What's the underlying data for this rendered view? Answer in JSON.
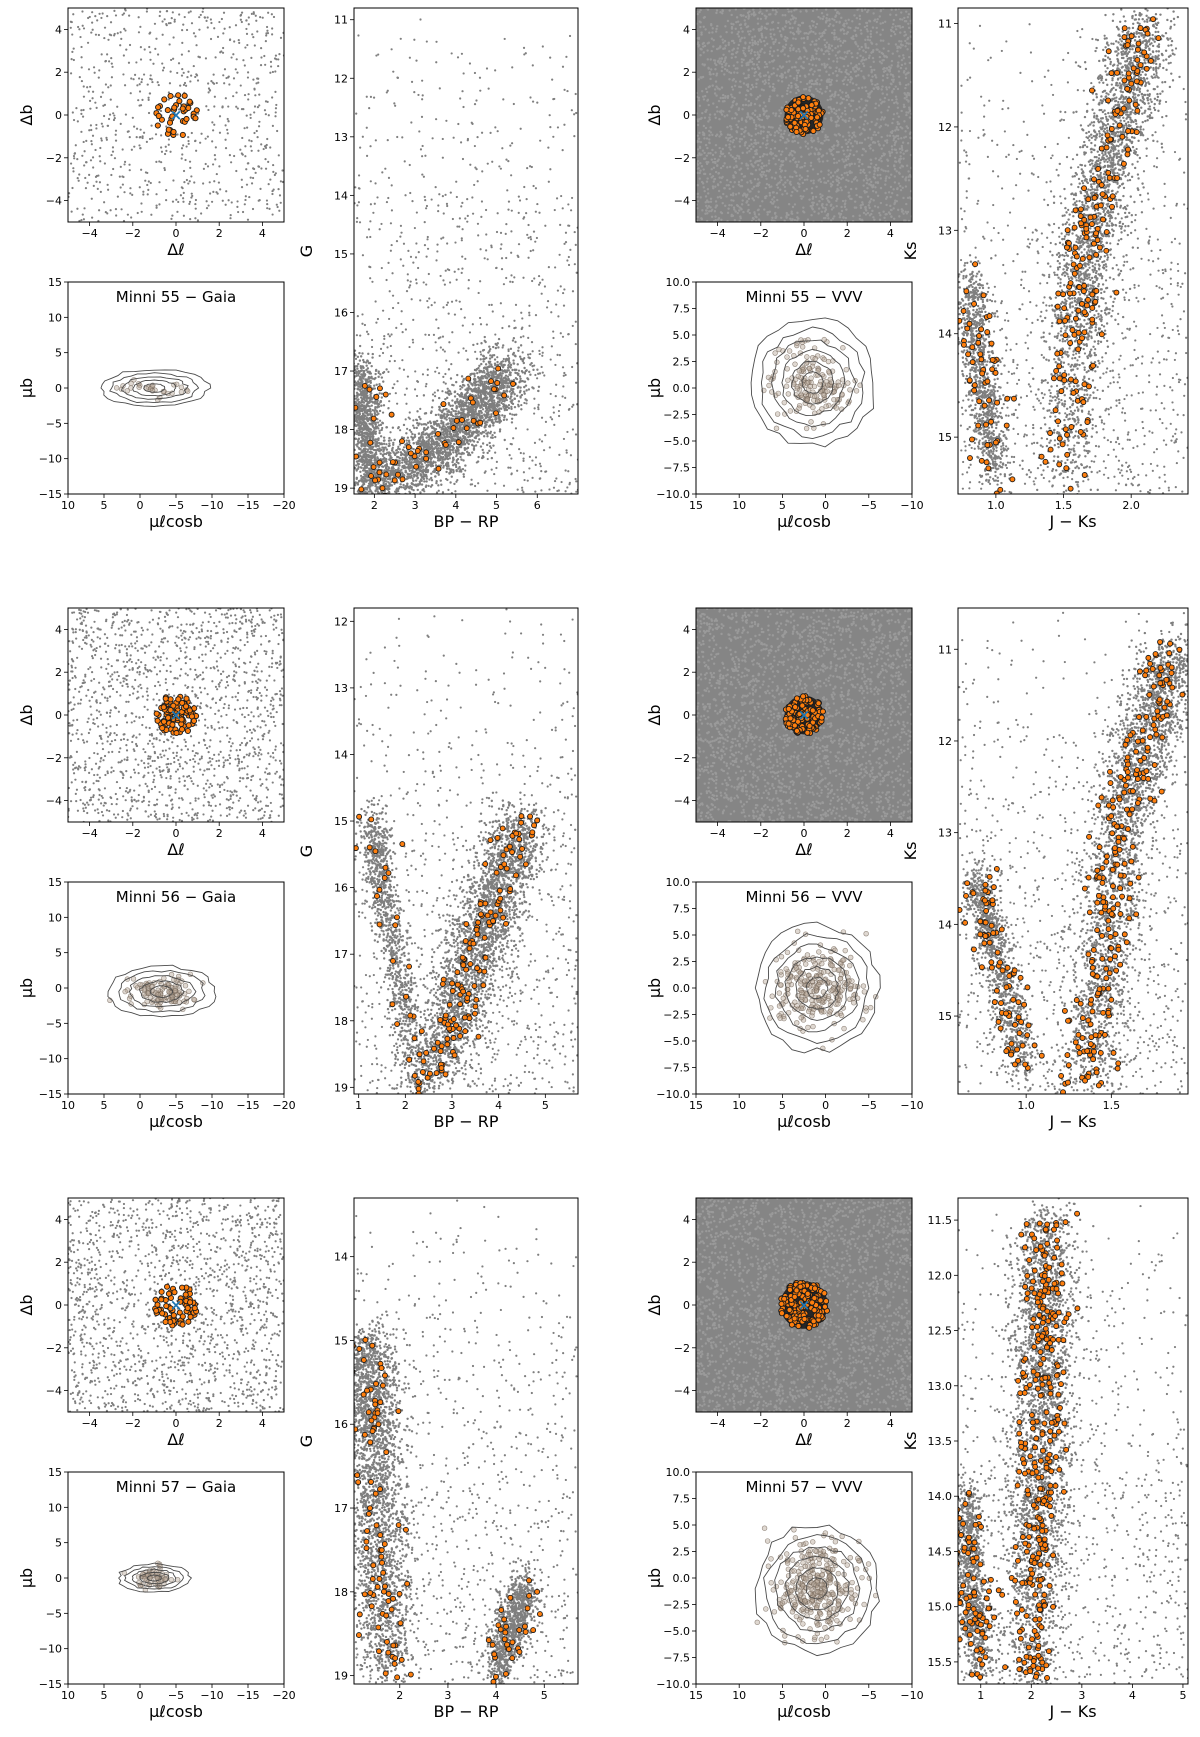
{
  "chart_data": [
    {
      "type": "scatter",
      "id": "m55-gaia-sky",
      "source": "Gaia",
      "cluster": "Minni 55",
      "kind": "sky",
      "xlabel": "Δℓ",
      "ylabel": "Δb",
      "xlim": [
        -5,
        5
      ],
      "ylim": [
        -5,
        5
      ],
      "invert_x": false,
      "invert_y": false,
      "xticks": [
        -4,
        -2,
        0,
        2,
        4
      ],
      "yticks": [
        -4,
        -2,
        0,
        2,
        4
      ],
      "field_density": "sparse",
      "member_radius": 1.0,
      "members_count": 40,
      "center": {
        "x": 0,
        "y": 0
      },
      "title": ""
    },
    {
      "type": "scatter",
      "id": "m55-gaia-pm",
      "source": "Gaia",
      "cluster": "Minni 55",
      "kind": "pm",
      "title": "Minni 55 − Gaia",
      "xlabel": "μℓcosb",
      "ylabel": "μb",
      "xlim": [
        10,
        -20
      ],
      "ylim": [
        -15,
        15
      ],
      "invert_x": true,
      "invert_y": false,
      "xticks": [
        10,
        5,
        0,
        -5,
        -10,
        -15,
        -20
      ],
      "yticks": [
        -15,
        -10,
        -5,
        0,
        5,
        10,
        15
      ],
      "center": {
        "x": -2,
        "y": 0
      },
      "spread": [
        3.8,
        1.4
      ],
      "members_count": 30,
      "contour_rx": [
        1.5,
        3,
        4.5,
        6,
        7.5
      ],
      "contour_ry": [
        0.6,
        1.1,
        1.6,
        2.1,
        2.6
      ]
    },
    {
      "type": "scatter",
      "id": "m55-gaia-cmd",
      "source": "Gaia",
      "cluster": "Minni 55",
      "kind": "cmd",
      "xlabel": "BP − RP",
      "ylabel": "G",
      "xlim": [
        1.5,
        7.0
      ],
      "ylim": [
        10.8,
        19.1
      ],
      "invert_x": false,
      "invert_y": true,
      "xticks": [
        2,
        3,
        4,
        5,
        6
      ],
      "yticks": [
        11,
        12,
        13,
        14,
        15,
        16,
        17,
        18,
        19
      ],
      "field_ridge": [
        [
          2.0,
          19.0
        ],
        [
          2.8,
          18.6
        ],
        [
          3.8,
          18.2
        ],
        [
          4.6,
          17.6
        ],
        [
          5.2,
          17.0
        ]
      ],
      "field_branch": [
        [
          1.9,
          19.0
        ],
        [
          1.8,
          18.0
        ],
        [
          1.7,
          17.0
        ]
      ],
      "members_count": 60,
      "title": ""
    },
    {
      "type": "scatter",
      "id": "m55-vvv-sky",
      "source": "VVV",
      "cluster": "Minni 55",
      "kind": "sky",
      "xlabel": "Δℓ",
      "ylabel": "Δb",
      "xlim": [
        -5,
        5
      ],
      "ylim": [
        -5,
        5
      ],
      "invert_x": false,
      "invert_y": false,
      "xticks": [
        -4,
        -2,
        0,
        2,
        4
      ],
      "yticks": [
        -4,
        -2,
        0,
        2,
        4
      ],
      "field_density": "dense",
      "member_radius": 0.9,
      "members_count": 120,
      "center": {
        "x": 0,
        "y": 0
      },
      "title": ""
    },
    {
      "type": "scatter",
      "id": "m55-vvv-pm",
      "source": "VVV",
      "cluster": "Minni 55",
      "kind": "pm",
      "title": "Minni 55 − VVV",
      "xlabel": "μℓcosb",
      "ylabel": "μb",
      "xlim": [
        15,
        -10
      ],
      "ylim": [
        -10,
        10
      ],
      "invert_x": true,
      "invert_y": false,
      "xticks": [
        15,
        10,
        5,
        0,
        -5,
        -10
      ],
      "yticks": [
        -10.0,
        -7.5,
        -5.0,
        -2.5,
        0.0,
        2.5,
        5.0,
        7.5,
        10.0
      ],
      "center": {
        "x": 1.5,
        "y": 0.5
      },
      "spread": [
        4.2,
        3.2
      ],
      "members_count": 180,
      "contour_rx": [
        1.2,
        2.4,
        3.6,
        4.8,
        6.0,
        7.2
      ],
      "contour_ry": [
        1.0,
        2.0,
        3.0,
        4.0,
        5.0,
        6.0
      ]
    },
    {
      "type": "scatter",
      "id": "m55-vvv-cmd",
      "source": "VVV",
      "cluster": "Minni 55",
      "kind": "cmd",
      "xlabel": "J − Ks",
      "ylabel": "Ks",
      "xlim": [
        0.72,
        2.42
      ],
      "ylim": [
        10.85,
        15.55
      ],
      "invert_x": false,
      "invert_y": true,
      "xticks": [
        1.0,
        1.5,
        2.0
      ],
      "yticks": [
        11,
        12,
        13,
        14,
        15
      ],
      "field_ridge": [
        [
          1.5,
          15.5
        ],
        [
          1.6,
          14.0
        ],
        [
          1.7,
          13.0
        ],
        [
          1.9,
          12.0
        ],
        [
          2.1,
          11.0
        ]
      ],
      "field_branch": [
        [
          1.0,
          15.4
        ],
        [
          0.9,
          14.5
        ],
        [
          0.8,
          13.5
        ]
      ],
      "members_count": 260,
      "title": ""
    },
    {
      "type": "scatter",
      "id": "m56-gaia-sky",
      "source": "Gaia",
      "cluster": "Minni 56",
      "kind": "sky",
      "xlabel": "Δℓ",
      "ylabel": "Δb",
      "xlim": [
        -5,
        5
      ],
      "ylim": [
        -5,
        5
      ],
      "invert_x": false,
      "invert_y": false,
      "xticks": [
        -4,
        -2,
        0,
        2,
        4
      ],
      "yticks": [
        -4,
        -2,
        0,
        2,
        4
      ],
      "field_density": "medium",
      "member_radius": 0.95,
      "members_count": 90,
      "center": {
        "x": 0,
        "y": 0
      },
      "title": ""
    },
    {
      "type": "scatter",
      "id": "m56-gaia-pm",
      "source": "Gaia",
      "cluster": "Minni 56",
      "kind": "pm",
      "title": "Minni 56 − Gaia",
      "xlabel": "μℓcosb",
      "ylabel": "μb",
      "xlim": [
        10,
        -20
      ],
      "ylim": [
        -15,
        15
      ],
      "invert_x": true,
      "invert_y": false,
      "xticks": [
        10,
        5,
        0,
        -5,
        -10,
        -15,
        -20
      ],
      "yticks": [
        -15,
        -10,
        -5,
        0,
        5,
        10,
        15
      ],
      "center": {
        "x": -3,
        "y": -0.5
      },
      "spread": [
        4.0,
        2.0
      ],
      "members_count": 120,
      "contour_rx": [
        1.5,
        3,
        4.5,
        6,
        7.5
      ],
      "contour_ry": [
        0.8,
        1.5,
        2.2,
        2.9,
        3.6
      ]
    },
    {
      "type": "scatter",
      "id": "m56-gaia-cmd",
      "source": "Gaia",
      "cluster": "Minni 56",
      "kind": "cmd",
      "xlabel": "BP − RP",
      "ylabel": "G",
      "xlim": [
        0.9,
        5.7
      ],
      "ylim": [
        11.8,
        19.1
      ],
      "invert_x": false,
      "invert_y": true,
      "xticks": [
        1,
        2,
        3,
        4,
        5
      ],
      "yticks": [
        12,
        13,
        14,
        15,
        16,
        17,
        18,
        19
      ],
      "field_ridge": [
        [
          2.5,
          19.0
        ],
        [
          3.0,
          18.0
        ],
        [
          3.5,
          17.0
        ],
        [
          4.0,
          16.0
        ],
        [
          4.5,
          15.0
        ]
      ],
      "field_branch": [
        [
          2.2,
          19.0
        ],
        [
          1.9,
          17.5
        ],
        [
          1.5,
          16.0
        ],
        [
          1.3,
          15.0
        ]
      ],
      "members_count": 160,
      "title": ""
    },
    {
      "type": "scatter",
      "id": "m56-vvv-sky",
      "source": "VVV",
      "cluster": "Minni 56",
      "kind": "sky",
      "xlabel": "Δℓ",
      "ylabel": "Δb",
      "xlim": [
        -5,
        5
      ],
      "ylim": [
        -5,
        5
      ],
      "invert_x": false,
      "invert_y": false,
      "xticks": [
        -4,
        -2,
        0,
        2,
        4
      ],
      "yticks": [
        -4,
        -2,
        0,
        2,
        4
      ],
      "field_density": "dense",
      "member_radius": 0.9,
      "members_count": 120,
      "center": {
        "x": 0,
        "y": 0
      },
      "title": ""
    },
    {
      "type": "scatter",
      "id": "m56-vvv-pm",
      "source": "VVV",
      "cluster": "Minni 56",
      "kind": "pm",
      "title": "Minni 56 − VVV",
      "xlabel": "μℓcosb",
      "ylabel": "μb",
      "xlim": [
        15,
        -10
      ],
      "ylim": [
        -10,
        10
      ],
      "invert_x": true,
      "invert_y": false,
      "xticks": [
        15,
        10,
        5,
        0,
        -5,
        -10
      ],
      "yticks": [
        -10.0,
        -7.5,
        -5.0,
        -2.5,
        0.0,
        2.5,
        5.0,
        7.5,
        10.0
      ],
      "center": {
        "x": 1.0,
        "y": 0
      },
      "spread": [
        4.5,
        3.6
      ],
      "members_count": 260,
      "contour_rx": [
        1.2,
        2.4,
        3.6,
        4.8,
        6.0,
        7.2
      ],
      "contour_ry": [
        1.0,
        2.0,
        3.0,
        4.0,
        5.0,
        6.0
      ]
    },
    {
      "type": "scatter",
      "id": "m56-vvv-cmd",
      "source": "VVV",
      "cluster": "Minni 56",
      "kind": "cmd",
      "xlabel": "J − Ks",
      "ylabel": "Ks",
      "xlim": [
        0.6,
        1.95
      ],
      "ylim": [
        10.55,
        15.85
      ],
      "invert_x": false,
      "invert_y": true,
      "xticks": [
        1.0,
        1.5
      ],
      "yticks": [
        11,
        12,
        13,
        14,
        15
      ],
      "field_ridge": [
        [
          1.35,
          15.8
        ],
        [
          1.45,
          14.5
        ],
        [
          1.55,
          13.0
        ],
        [
          1.7,
          12.0
        ],
        [
          1.85,
          11.0
        ]
      ],
      "field_branch": [
        [
          1.0,
          15.6
        ],
        [
          0.85,
          14.5
        ],
        [
          0.7,
          13.5
        ]
      ],
      "members_count": 330,
      "title": ""
    },
    {
      "type": "scatter",
      "id": "m57-gaia-sky",
      "source": "Gaia",
      "cluster": "Minni 57",
      "kind": "sky",
      "xlabel": "Δℓ",
      "ylabel": "Δb",
      "xlim": [
        -5,
        5
      ],
      "ylim": [
        -5,
        5
      ],
      "invert_x": false,
      "invert_y": false,
      "xticks": [
        -4,
        -2,
        0,
        2,
        4
      ],
      "yticks": [
        -4,
        -2,
        0,
        2,
        4
      ],
      "field_density": "medium",
      "member_radius": 1.0,
      "members_count": 70,
      "center": {
        "x": 0,
        "y": 0
      },
      "title": ""
    },
    {
      "type": "scatter",
      "id": "m57-gaia-pm",
      "source": "Gaia",
      "cluster": "Minni 57",
      "kind": "pm",
      "title": "Minni 57 − Gaia",
      "xlabel": "μℓcosb",
      "ylabel": "μb",
      "xlim": [
        10,
        -20
      ],
      "ylim": [
        -15,
        15
      ],
      "invert_x": true,
      "invert_y": false,
      "xticks": [
        10,
        5,
        0,
        -5,
        -10,
        -15,
        -20
      ],
      "yticks": [
        -15,
        -10,
        -5,
        0,
        5,
        10,
        15
      ],
      "center": {
        "x": -2,
        "y": 0
      },
      "spread": [
        2.5,
        1.2
      ],
      "members_count": 60,
      "contour_rx": [
        1,
        2,
        3,
        4,
        5
      ],
      "contour_ry": [
        0.4,
        0.8,
        1.2,
        1.6,
        2.0
      ]
    },
    {
      "type": "scatter",
      "id": "m57-gaia-cmd",
      "source": "Gaia",
      "cluster": "Minni 57",
      "kind": "cmd",
      "xlabel": "BP − RP",
      "ylabel": "G",
      "xlim": [
        1.05,
        5.7
      ],
      "ylim": [
        13.3,
        19.1
      ],
      "invert_x": false,
      "invert_y": true,
      "xticks": [
        2,
        3,
        4,
        5
      ],
      "yticks": [
        14,
        15,
        16,
        17,
        18,
        19
      ],
      "field_ridge": [
        [
          1.8,
          19.0
        ],
        [
          1.6,
          17.5
        ],
        [
          1.4,
          16.0
        ],
        [
          1.3,
          15.0
        ]
      ],
      "field_branch": [
        [
          4.0,
          19.0
        ],
        [
          4.3,
          18.5
        ],
        [
          4.6,
          18.0
        ]
      ],
      "members_count": 120,
      "title": ""
    },
    {
      "type": "scatter",
      "id": "m57-vvv-sky",
      "source": "VVV",
      "cluster": "Minni 57",
      "kind": "sky",
      "xlabel": "Δℓ",
      "ylabel": "Δb",
      "xlim": [
        -5,
        5
      ],
      "ylim": [
        -5,
        5
      ],
      "invert_x": false,
      "invert_y": false,
      "xticks": [
        -4,
        -2,
        0,
        2,
        4
      ],
      "yticks": [
        -4,
        -2,
        0,
        2,
        4
      ],
      "field_density": "dense",
      "member_radius": 1.1,
      "members_count": 160,
      "center": {
        "x": 0,
        "y": 0
      },
      "title": ""
    },
    {
      "type": "scatter",
      "id": "m57-vvv-pm",
      "source": "VVV",
      "cluster": "Minni 57",
      "kind": "pm",
      "title": "Minni 57 − VVV",
      "xlabel": "μℓcosb",
      "ylabel": "μb",
      "xlim": [
        15,
        -10
      ],
      "ylim": [
        -10,
        10
      ],
      "invert_x": true,
      "invert_y": false,
      "xticks": [
        15,
        10,
        5,
        0,
        -5,
        -10
      ],
      "yticks": [
        -10.0,
        -7.5,
        -5.0,
        -2.5,
        0.0,
        2.5,
        5.0,
        7.5,
        10.0
      ],
      "center": {
        "x": 1.0,
        "y": -1.0
      },
      "spread": [
        4.5,
        3.8
      ],
      "members_count": 320,
      "contour_rx": [
        1.2,
        2.4,
        3.6,
        4.8,
        6.0,
        7.2
      ],
      "contour_ry": [
        1.0,
        2.0,
        3.0,
        4.0,
        5.0,
        6.0
      ]
    },
    {
      "type": "scatter",
      "id": "m57-vvv-cmd",
      "source": "VVV",
      "cluster": "Minni 57",
      "kind": "cmd",
      "xlabel": "J − Ks",
      "ylabel": "Ks",
      "xlim": [
        0.55,
        5.1
      ],
      "ylim": [
        11.3,
        15.7
      ],
      "invert_x": false,
      "invert_y": true,
      "xticks": [
        1,
        2,
        3,
        4,
        5
      ],
      "yticks": [
        11.5,
        12.0,
        12.5,
        13.0,
        13.5,
        14.0,
        14.5,
        15.0,
        15.5
      ],
      "field_ridge": [
        [
          2.0,
          15.7
        ],
        [
          2.1,
          14.5
        ],
        [
          2.2,
          13.5
        ],
        [
          2.25,
          12.5
        ],
        [
          2.3,
          11.5
        ]
      ],
      "field_branch": [
        [
          1.0,
          15.6
        ],
        [
          0.8,
          14.8
        ],
        [
          0.7,
          14.0
        ]
      ],
      "members_count": 420,
      "title": ""
    }
  ],
  "colors": {
    "field": "#7f7f7f",
    "member_fill": "#ff7f0e",
    "member_edge": "#1a1a1a",
    "center_marker": "#1f77b4",
    "pm_points": "#b8a898",
    "contour": "#4a4a4a",
    "axes": "#000000"
  },
  "symbols": {
    "center_marker": "×"
  }
}
